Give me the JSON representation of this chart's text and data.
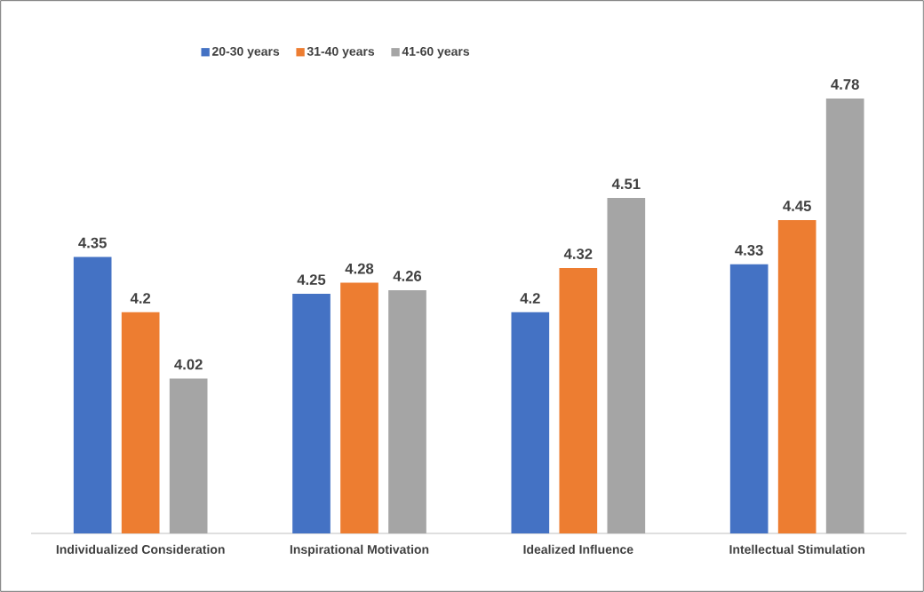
{
  "chart_data": {
    "type": "bar",
    "categories": [
      "Individualized Consideration",
      "Inspirational Motivation",
      "Idealized Influence",
      "Intellectual Stimulation"
    ],
    "series": [
      {
        "name": "20-30 years",
        "color": "#4472c4",
        "values": [
          4.35,
          4.25,
          4.2,
          4.33
        ]
      },
      {
        "name": "31-40 years",
        "color": "#ed7d31",
        "values": [
          4.2,
          4.28,
          4.32,
          4.45
        ]
      },
      {
        "name": "41-60 years",
        "color": "#a5a5a5",
        "values": [
          4.02,
          4.26,
          4.51,
          4.78
        ]
      }
    ],
    "ylim": [
      3.6,
      4.78
    ],
    "data_labels": true,
    "legend": "top",
    "tick_labels": "x"
  }
}
